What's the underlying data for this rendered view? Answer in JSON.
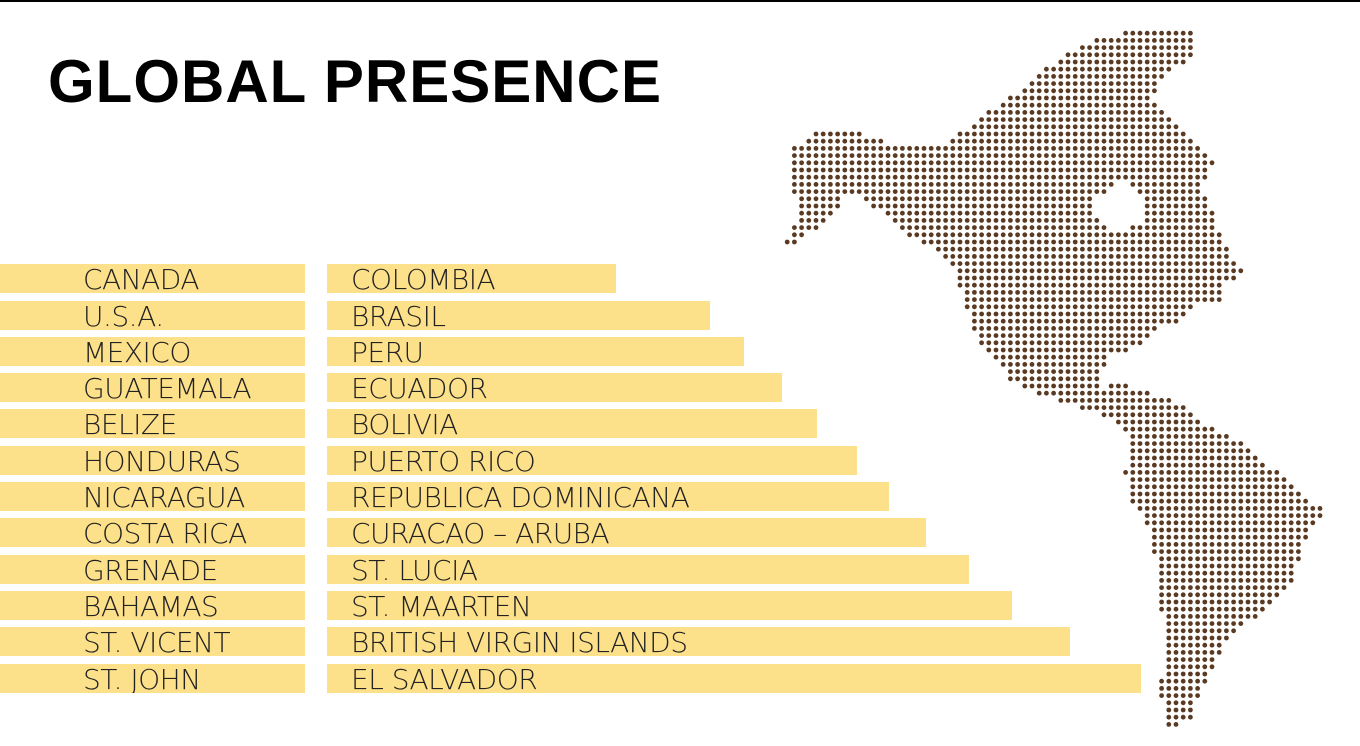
{
  "title": "GLOBAL PRESENCE",
  "colors": {
    "bar": "#fce08a",
    "map_dots": "#5a3a22",
    "text": "#222222"
  },
  "map": {
    "icon": "dotted-americas-map-icon"
  },
  "countries_left": [
    "CANADA",
    "U.S.A.",
    "MEXICO",
    "GUATEMALA",
    "BELIZE",
    "HONDURAS",
    "NICARAGUA",
    "COSTA RICA",
    "GRENADE",
    "BAHAMAS",
    "ST. VICENT",
    "ST. JOHN"
  ],
  "countries_right": [
    "COLOMBIA",
    "BRASIL",
    "PERU",
    "ECUADOR",
    "BOLIVIA",
    "PUERTO RICO",
    "REPUBLICA DOMINICANA",
    "CURACAO – ARUBA",
    "ST. LUCIA",
    "ST. MAARTEN",
    "BRITISH VIRGIN ISLANDS",
    "EL SALVADOR"
  ]
}
